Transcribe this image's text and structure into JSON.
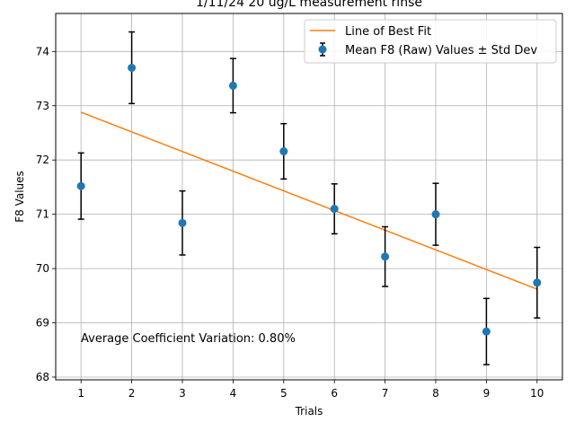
{
  "chart_data": {
    "type": "scatter",
    "title": "1/11/24 20 ug/L measurement rinse",
    "xlabel": "Trials",
    "ylabel": "F8 Values",
    "xlim": [
      0.5,
      10.5
    ],
    "ylim": [
      67.95,
      74.7
    ],
    "xticks": [
      1,
      2,
      3,
      4,
      5,
      6,
      7,
      8,
      9,
      10
    ],
    "yticks": [
      68,
      69,
      70,
      71,
      72,
      73,
      74
    ],
    "grid": true,
    "legend_position": "top-right",
    "annotation": "Average Coefficient Variation: 0.80%",
    "series": [
      {
        "name": "Mean F8 (Raw) Values ± Std Dev",
        "kind": "errorbar",
        "color": "#1f77b4",
        "x": [
          1,
          2,
          3,
          4,
          5,
          6,
          7,
          8,
          9,
          10
        ],
        "y": [
          71.52,
          73.7,
          70.84,
          73.37,
          72.16,
          71.1,
          70.22,
          71.0,
          68.84,
          69.74
        ],
        "err": [
          0.61,
          0.66,
          0.59,
          0.5,
          0.51,
          0.46,
          0.55,
          0.57,
          0.61,
          0.65
        ]
      },
      {
        "name": "Line of Best Fit",
        "kind": "line",
        "color": "#ff7f0e",
        "x": [
          1,
          10
        ],
        "y": [
          72.88,
          69.62
        ]
      }
    ]
  }
}
